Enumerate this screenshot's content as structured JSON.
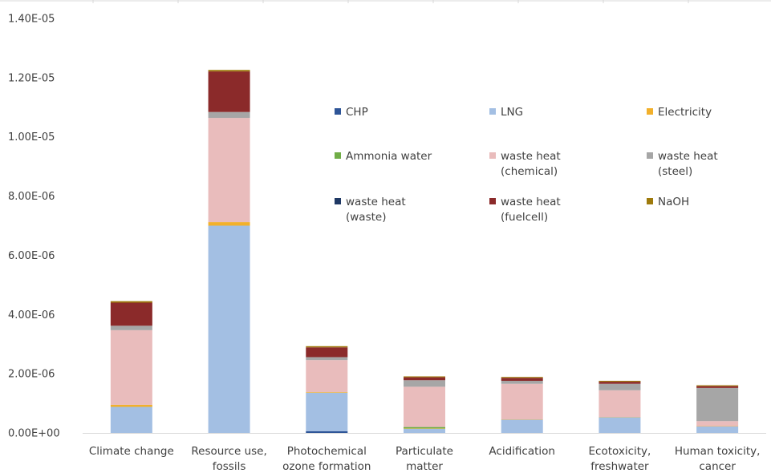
{
  "chart_data": {
    "type": "bar",
    "stacked": true,
    "title": "",
    "xlabel": "",
    "ylabel": "",
    "ylim": [
      0,
      1.4e-05
    ],
    "y_ticks": [
      "0.00E+00",
      "2.00E-06",
      "4.00E-06",
      "6.00E-06",
      "8.00E-06",
      "1.00E-05",
      "1.20E-05",
      "1.40E-05"
    ],
    "grid": false,
    "legend_position": "inside-top-right",
    "categories": [
      [
        "Climate change"
      ],
      [
        "Resource use,",
        "fossils"
      ],
      [
        "Photochemical",
        "ozone formation"
      ],
      [
        "Particulate",
        "matter"
      ],
      [
        "Acidification"
      ],
      [
        "Ecotoxicity,",
        "freshwater"
      ],
      [
        "Human toxicity,",
        "cancer"
      ]
    ],
    "series": [
      {
        "name": [
          "CHP"
        ],
        "color": "#2e5597",
        "values": [
          0,
          0,
          6e-08,
          0,
          0,
          0,
          0
        ]
      },
      {
        "name": [
          "LNG"
        ],
        "color": "#a3bfe3",
        "values": [
          8.8e-07,
          7e-06,
          1.3e-06,
          1.4e-07,
          4.5e-07,
          5.3e-07,
          2.2e-07
        ]
      },
      {
        "name": [
          "Electricity"
        ],
        "color": "#f2b02b",
        "values": [
          7e-08,
          1.2e-07,
          2e-08,
          1e-08,
          1e-08,
          1e-08,
          1e-08
        ]
      },
      {
        "name": [
          "Ammonia water"
        ],
        "color": "#70ad47",
        "values": [
          0,
          0,
          0,
          5e-08,
          0,
          0,
          0
        ]
      },
      {
        "name": [
          "waste heat",
          "(chemical)"
        ],
        "color": "#e9bcbc",
        "values": [
          2.52e-06,
          3.52e-06,
          1.08e-06,
          1.36e-06,
          1.2e-06,
          9e-07,
          1.7e-07
        ]
      },
      {
        "name": [
          "waste heat",
          "(steel)"
        ],
        "color": "#a6a6a6",
        "values": [
          1.5e-07,
          2e-07,
          1e-07,
          2.2e-07,
          1e-07,
          2.2e-07,
          1.12e-06
        ]
      },
      {
        "name": [
          "waste heat",
          "(waste)"
        ],
        "color": "#1f3864",
        "values": [
          0,
          0,
          0,
          0,
          0,
          0,
          0
        ]
      },
      {
        "name": [
          "waste heat",
          "(fuelcell)"
        ],
        "color": "#8b2a2a",
        "values": [
          7.8e-07,
          1.37e-06,
          3.3e-07,
          1e-07,
          1e-07,
          7e-08,
          6e-08
        ]
      },
      {
        "name": [
          "NaOH"
        ],
        "color": "#9e7a0c",
        "values": [
          5e-08,
          5e-08,
          4e-08,
          3e-08,
          3e-08,
          3e-08,
          3e-08
        ]
      }
    ]
  },
  "style": {
    "axis_color": "#d9d9d9",
    "text_color": "#404040"
  }
}
